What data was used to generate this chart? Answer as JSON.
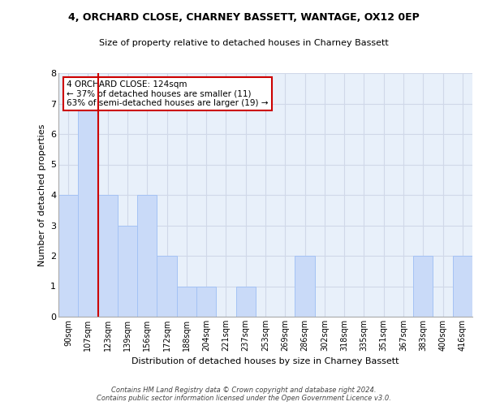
{
  "title1": "4, ORCHARD CLOSE, CHARNEY BASSETT, WANTAGE, OX12 0EP",
  "title2": "Size of property relative to detached houses in Charney Bassett",
  "xlabel": "Distribution of detached houses by size in Charney Bassett",
  "ylabel": "Number of detached properties",
  "categories": [
    "90sqm",
    "107sqm",
    "123sqm",
    "139sqm",
    "156sqm",
    "172sqm",
    "188sqm",
    "204sqm",
    "221sqm",
    "237sqm",
    "253sqm",
    "269sqm",
    "286sqm",
    "302sqm",
    "318sqm",
    "335sqm",
    "351sqm",
    "367sqm",
    "383sqm",
    "400sqm",
    "416sqm"
  ],
  "values": [
    4,
    7,
    4,
    3,
    4,
    2,
    1,
    1,
    0,
    1,
    0,
    0,
    2,
    0,
    0,
    0,
    0,
    0,
    2,
    0,
    2
  ],
  "bar_color": "#c9daf8",
  "bar_edge_color": "#a4c2f4",
  "vline_index": 2,
  "vline_color": "#cc0000",
  "annotation_text": "4 ORCHARD CLOSE: 124sqm\n← 37% of detached houses are smaller (11)\n63% of semi-detached houses are larger (19) →",
  "annotation_box_color": "#ffffff",
  "annotation_box_edge": "#cc0000",
  "ylim": [
    0,
    8
  ],
  "yticks": [
    0,
    1,
    2,
    3,
    4,
    5,
    6,
    7,
    8
  ],
  "footer": "Contains HM Land Registry data © Crown copyright and database right 2024.\nContains public sector information licensed under the Open Government Licence v3.0.",
  "grid_color": "#d0d8e8",
  "bg_color": "#e8f0fa"
}
